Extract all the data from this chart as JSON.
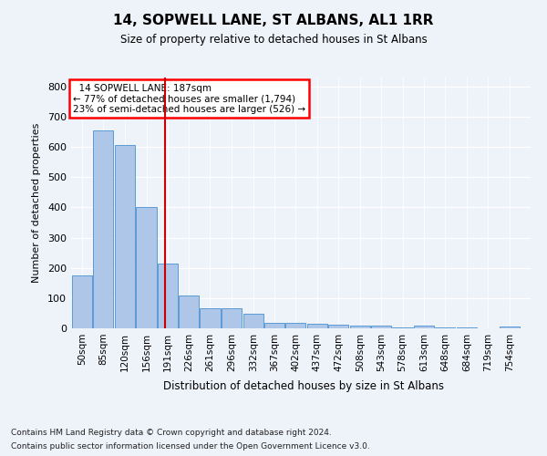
{
  "title": "14, SOPWELL LANE, ST ALBANS, AL1 1RR",
  "subtitle": "Size of property relative to detached houses in St Albans",
  "xlabel": "Distribution of detached houses by size in St Albans",
  "ylabel": "Number of detached properties",
  "footnote1": "Contains HM Land Registry data © Crown copyright and database right 2024.",
  "footnote2": "Contains public sector information licensed under the Open Government Licence v3.0.",
  "annotation_line1": "14 SOPWELL LANE: 187sqm",
  "annotation_line2": "← 77% of detached houses are smaller (1,794)",
  "annotation_line3": "23% of semi-detached houses are larger (526) →",
  "bar_color": "#aec6e8",
  "bar_edge_color": "#5b9bd5",
  "vline_color": "#cc0000",
  "vline_x": 187,
  "categories": [
    50,
    85,
    120,
    156,
    191,
    226,
    261,
    296,
    332,
    367,
    402,
    437,
    472,
    508,
    543,
    578,
    613,
    648,
    684,
    719,
    754
  ],
  "bin_width": 35,
  "values": [
    175,
    655,
    607,
    402,
    215,
    108,
    67,
    67,
    48,
    18,
    18,
    15,
    12,
    8,
    8,
    2,
    8,
    2,
    2,
    0,
    7
  ],
  "xlim_min": 32,
  "xlim_max": 789,
  "ylim_min": 0,
  "ylim_max": 830,
  "yticks": [
    0,
    100,
    200,
    300,
    400,
    500,
    600,
    700,
    800
  ],
  "background_color": "#eef2f9",
  "plot_background": "#eef2f9"
}
